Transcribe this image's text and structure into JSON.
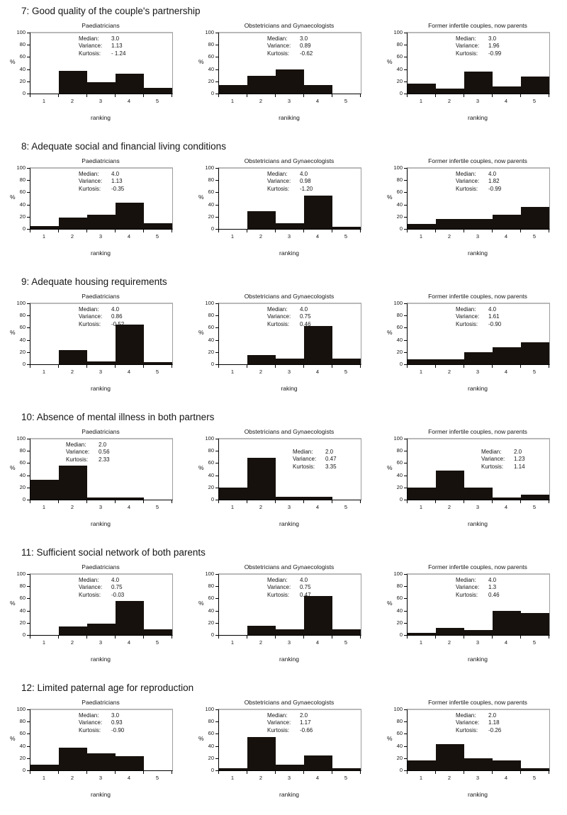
{
  "axis": {
    "y_label": "%",
    "y_ticks": [
      "100",
      "80",
      "60",
      "40",
      "20",
      "0"
    ],
    "x_ticks": [
      "1",
      "2",
      "3",
      "4",
      "5"
    ],
    "ylim": [
      0,
      100
    ]
  },
  "stats_labels": {
    "median": "Median:",
    "variance": "Variance:",
    "kurtosis": "Kurtosis:"
  },
  "colors": {
    "bar": "#16110d",
    "axis": "#000000",
    "plot_border": "#b0b0b0",
    "background": "#ffffff"
  },
  "chart_data": [
    {
      "question": "7: Good quality of the couple's partnership",
      "charts": [
        {
          "type": "bar",
          "group": "Paediatricians",
          "xlabel": "ranking",
          "values": [
            0,
            38,
            19,
            33,
            9
          ],
          "median": "3.0",
          "variance": "1.13",
          "kurtosis": "- 1.24",
          "stats_pos": "center"
        },
        {
          "type": "bar",
          "group": "Obstetricians and Gynaecologists",
          "xlabel": "raniking",
          "values": [
            14,
            29,
            40,
            14,
            0
          ],
          "median": "3.0",
          "variance": "0.89",
          "kurtosis": "-0.62",
          "stats_pos": "center"
        },
        {
          "type": "bar",
          "group": "Former infertile couples, now parents",
          "xlabel": "ranking",
          "values": [
            16,
            8,
            36,
            12,
            28
          ],
          "median": "3.0",
          "variance": "1.96",
          "kurtosis": "-0.99",
          "stats_pos": "center"
        }
      ]
    },
    {
      "question": "8: Adequate social and financial living conditions",
      "charts": [
        {
          "type": "bar",
          "group": "Paediatricians",
          "xlabel": "ranking",
          "values": [
            5,
            19,
            24,
            43,
            9
          ],
          "median": "4.0",
          "variance": "1.13",
          "kurtosis": "-0.35",
          "stats_pos": "center"
        },
        {
          "type": "bar",
          "group": "Obstetricians and Gynaecologists",
          "xlabel": "ranking",
          "values": [
            0,
            30,
            10,
            55,
            4
          ],
          "median": "4.0",
          "variance": "0.98",
          "kurtosis": "-1.20",
          "stats_pos": "center"
        },
        {
          "type": "bar",
          "group": "Former infertile couples, now parents",
          "xlabel": "ranking",
          "values": [
            8,
            16,
            16,
            24,
            36
          ],
          "median": "4.0",
          "variance": "1.82",
          "kurtosis": "-0.99",
          "stats_pos": "center"
        }
      ]
    },
    {
      "question": "9: Adequate housing requirements",
      "charts": [
        {
          "type": "bar",
          "group": "Paediatricians",
          "xlabel": "ranking",
          "values": [
            0,
            24,
            5,
            66,
            4
          ],
          "median": "4.0",
          "variance": "0.86",
          "kurtosis": "-0.52",
          "stats_pos": "center"
        },
        {
          "type": "bar",
          "group": "Obstetricians and Gynaecologists",
          "xlabel": "raking",
          "values": [
            0,
            15,
            10,
            64,
            10
          ],
          "median": "4.0",
          "variance": "0.75",
          "kurtosis": "0.46",
          "stats_pos": "center"
        },
        {
          "type": "bar",
          "group": "Former infertile couples, now parents",
          "xlabel": "ranking",
          "values": [
            8,
            8,
            20,
            28,
            36
          ],
          "median": "4.0",
          "variance": "1.61",
          "kurtosis": "-0.90",
          "stats_pos": "center"
        }
      ]
    },
    {
      "question": "10: Absence of mental illness in both partners",
      "charts": [
        {
          "type": "bar",
          "group": "Paediatricians",
          "xlabel": "ranking",
          "values": [
            33,
            57,
            4,
            4,
            0
          ],
          "median": "2.0",
          "variance": "0.56",
          "kurtosis": "2.33",
          "stats_pos": "left"
        },
        {
          "type": "bar",
          "group": "Obstetricians and Gynaecologists",
          "xlabel": "ranking",
          "values": [
            20,
            70,
            5,
            5,
            0
          ],
          "median": "2.0",
          "variance": "0.47",
          "kurtosis": "3.35",
          "stats_pos": "right"
        },
        {
          "type": "bar",
          "group": "Former infertile couples, now parents",
          "xlabel": "ranking",
          "values": [
            20,
            48,
            20,
            4,
            8
          ],
          "median": "2.0",
          "variance": "1.23",
          "kurtosis": "1.14",
          "stats_pos": "right"
        }
      ]
    },
    {
      "question": "11: Sufficient social network of both parents",
      "charts": [
        {
          "type": "bar",
          "group": "Paediatricians",
          "xlabel": "ranking",
          "values": [
            0,
            14,
            19,
            57,
            9
          ],
          "median": "4.0",
          "variance": "0.75",
          "kurtosis": "-0.03",
          "stats_pos": "center"
        },
        {
          "type": "bar",
          "group": "Obstetricians and Gynaecologists",
          "xlabel": "ranking",
          "values": [
            0,
            15,
            10,
            65,
            10
          ],
          "median": "4.0",
          "variance": "0.75",
          "kurtosis": "0.47",
          "stats_pos": "center"
        },
        {
          "type": "bar",
          "group": "Former infertile couples, now parents",
          "xlabel": "ranking",
          "values": [
            4,
            12,
            8,
            40,
            36
          ],
          "median": "4.0",
          "variance": "1.3",
          "kurtosis": "0.46",
          "stats_pos": "center"
        }
      ]
    },
    {
      "question": "12: Limited paternal age for reproduction",
      "charts": [
        {
          "type": "bar",
          "group": "Paediatricians",
          "xlabel": "ranking",
          "values": [
            10,
            38,
            28,
            24,
            0
          ],
          "median": "3.0",
          "variance": "0.93",
          "kurtosis": "-0.90",
          "stats_pos": "center"
        },
        {
          "type": "bar",
          "group": "Obstetricians and Gynaecologists",
          "xlabel": "ranking",
          "values": [
            4,
            55,
            10,
            25,
            4
          ],
          "median": "2.0",
          "variance": "1.17",
          "kurtosis": "-0.66",
          "stats_pos": "center"
        },
        {
          "type": "bar",
          "group": "Former infertile couples, now parents",
          "xlabel": "ranking",
          "values": [
            16,
            44,
            20,
            16,
            4
          ],
          "median": "2.0",
          "variance": "1.18",
          "kurtosis": "-0.26",
          "stats_pos": "center"
        }
      ]
    }
  ]
}
